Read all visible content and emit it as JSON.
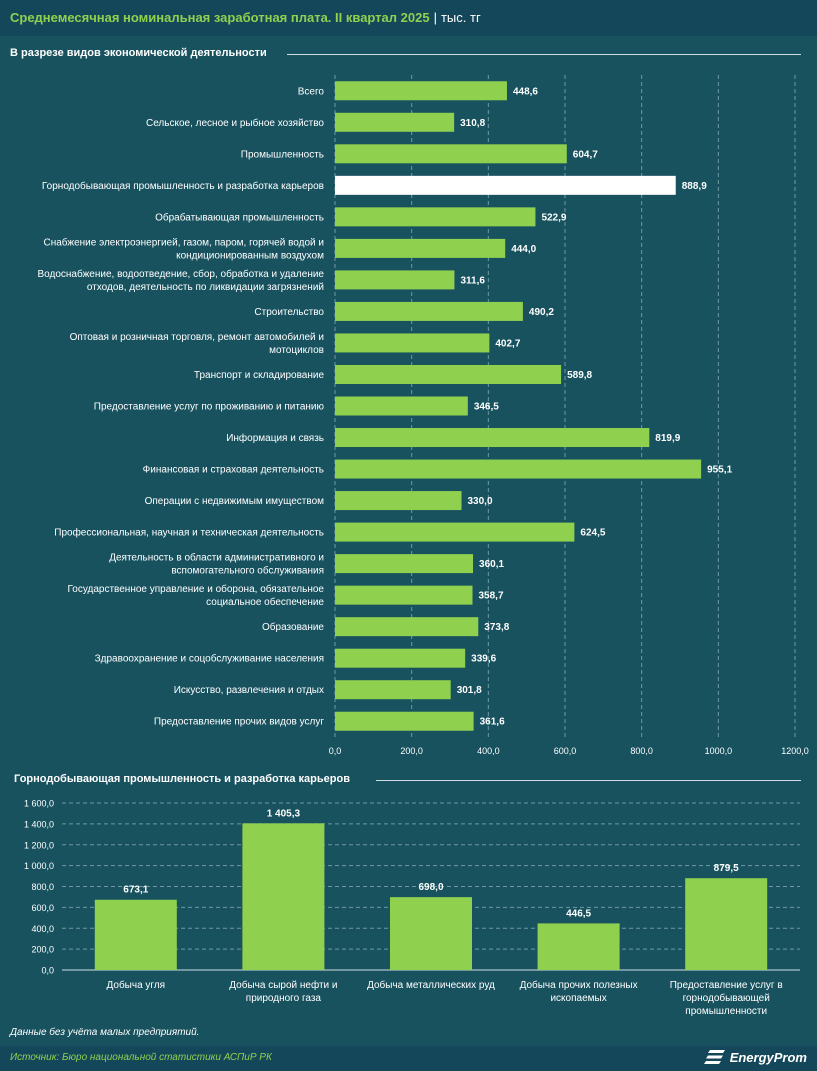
{
  "header": {
    "title": "Среднемесячная номинальная заработная плата. II квартал 2025",
    "separator": "|",
    "unit": "тыс. тг"
  },
  "colors": {
    "background": "#18525f",
    "bar": "#8fd14f",
    "highlight_bar": "#ffffff",
    "title_green": "#8fd14f"
  },
  "chart_data": [
    {
      "type": "bar",
      "orientation": "horizontal",
      "title": "В разрезе видов экономической деятельности",
      "categories": [
        "Всего",
        "Сельское, лесное и рыбное хозяйство",
        "Промышленность",
        "Горнодобывающая промышленность и разработка карьеров",
        "Обрабатывающая промышленность",
        "Снабжение электроэнергией, газом, паром, горячей водой и кондиционированным воздухом",
        "Водоснабжение, водоотведение, сбор, обработка и удаление отходов, деятельность по ликвидации загрязнений",
        "Строительство",
        "Оптовая и розничная торговля, ремонт автомобилей и мотоциклов",
        "Транспорт и складирование",
        "Предоставление услуг по проживанию и питанию",
        "Информация и связь",
        "Финансовая и страховая деятельность",
        "Операции с недвижимым имуществом",
        "Профессиональная, научная и техническая деятельность",
        "Деятельность в области административного и вспомогательного обслуживания",
        "Государственное управление и оборона, обязательное социальное обеспечение",
        "Образование",
        "Здравоохранение и соцобслуживание населения",
        "Искусство, развлечения и отдых",
        "Предоставление прочих видов услуг"
      ],
      "category_lines": [
        [
          "Всего"
        ],
        [
          "Сельское, лесное и рыбное хозяйство"
        ],
        [
          "Промышленность"
        ],
        [
          "Горнодобывающая промышленность и разработка карьеров"
        ],
        [
          "Обрабатывающая промышленность"
        ],
        [
          "Снабжение электроэнергией, газом, паром, горячей водой и",
          "кондиционированным воздухом"
        ],
        [
          "Водоснабжение, водоотведение, сбор, обработка и удаление",
          "отходов, деятельность по ликвидации загрязнений"
        ],
        [
          "Строительство"
        ],
        [
          "Оптовая и розничная торговля, ремонт автомобилей и",
          "мотоциклов"
        ],
        [
          "Транспорт и складирование"
        ],
        [
          "Предоставление услуг по проживанию и питанию"
        ],
        [
          "Информация и связь"
        ],
        [
          "Финансовая и страховая деятельность"
        ],
        [
          "Операции с недвижимым имуществом"
        ],
        [
          "Профессиональная, научная и техническая деятельность"
        ],
        [
          "Деятельность в области административного и",
          "вспомогательного обслуживания"
        ],
        [
          "Государственное управление и оборона, обязательное",
          "социальное обеспечение"
        ],
        [
          "Образование"
        ],
        [
          "Здравоохранение и соцобслуживание населения"
        ],
        [
          "Искусство, развлечения и отдых"
        ],
        [
          "Предоставление прочих видов услуг"
        ]
      ],
      "values": [
        448.6,
        310.8,
        604.7,
        888.9,
        522.9,
        444.0,
        311.6,
        490.2,
        402.7,
        589.8,
        346.5,
        819.9,
        955.1,
        330.0,
        624.5,
        360.1,
        358.7,
        373.8,
        339.6,
        301.8,
        361.6
      ],
      "value_labels": [
        "448,6",
        "310,8",
        "604,7",
        "888,9",
        "522,9",
        "444,0",
        "311,6",
        "490,2",
        "402,7",
        "589,8",
        "346,5",
        "819,9",
        "955,1",
        "330,0",
        "624,5",
        "360,1",
        "358,7",
        "373,8",
        "339,6",
        "301,8",
        "361,6"
      ],
      "highlight_index": 3,
      "xlim": [
        0,
        1200
      ],
      "ticks": [
        0,
        200,
        400,
        600,
        800,
        1000,
        1200
      ],
      "tick_labels": [
        "0,0",
        "200,0",
        "400,0",
        "600,0",
        "800,0",
        "1000,0",
        "1200,0"
      ],
      "grid": "vertical dashed",
      "xlabel": "",
      "ylabel": ""
    },
    {
      "type": "bar",
      "orientation": "vertical",
      "title": "Горнодобывающая промышленность и разработка карьеров",
      "categories": [
        "Добыча угля",
        "Добыча сырой нефти и природного газа",
        "Добыча металлических руд",
        "Добыча прочих полезных ископаемых",
        "Предоставление услуг в горнодобывающей промышленности"
      ],
      "category_lines": [
        [
          "Добыча угля"
        ],
        [
          "Добыча сырой нефти и",
          "природного газа"
        ],
        [
          "Добыча металлических руд"
        ],
        [
          "Добыча прочих полезных",
          "ископаемых"
        ],
        [
          "Предоставление услуг в",
          "горнодобывающей",
          "промышленности"
        ]
      ],
      "values": [
        673.1,
        1405.3,
        698.0,
        446.5,
        879.5
      ],
      "value_labels": [
        "673,1",
        "1 405,3",
        "698,0",
        "446,5",
        "879,5"
      ],
      "ylim": [
        0,
        1600
      ],
      "ticks": [
        0,
        200,
        400,
        600,
        800,
        1000,
        1200,
        1400,
        1600
      ],
      "tick_labels": [
        "0,0",
        "200,0",
        "400,0",
        "600,0",
        "800,0",
        "1 000,0",
        "1 200,0",
        "1 400,0",
        "1 600,0"
      ],
      "grid": "horizontal dashed",
      "xlabel": "",
      "ylabel": ""
    }
  ],
  "footnote": "Данные без учёта малых предприятий.",
  "footer": {
    "source": "Источник: Бюро национальной статистики АСПиР РК",
    "brand": "EnergyProm",
    "brand_icon": "energyprom-logo-icon"
  }
}
